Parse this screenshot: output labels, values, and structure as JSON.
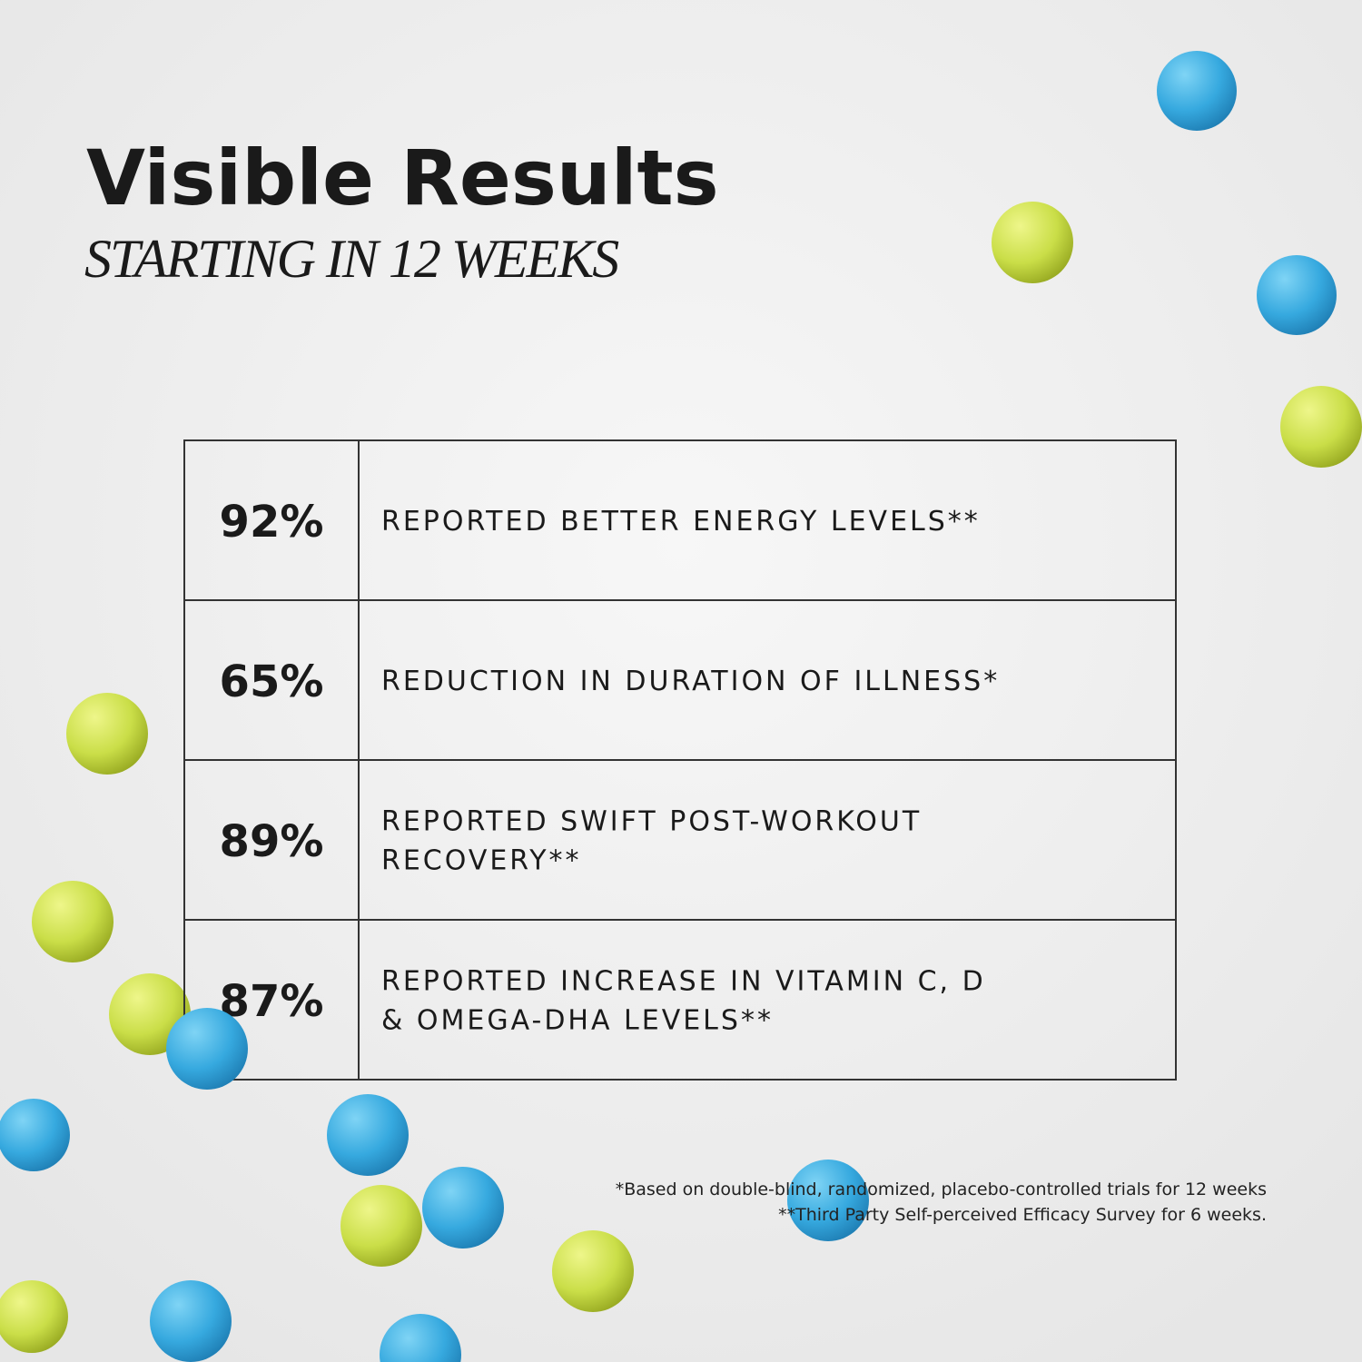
{
  "header": {
    "title": "Visible Results",
    "subtitle": "STARTING IN 12 WEEKS"
  },
  "table": {
    "rows": [
      {
        "stat": "92%",
        "label": [
          "REPORTED BETTER ENERGY LEVELS**"
        ]
      },
      {
        "stat": "65%",
        "label": [
          "REDUCTION IN DURATION OF ILLNESS*"
        ]
      },
      {
        "stat": "89%",
        "label": [
          "REPORTED SWIFT POST-WORKOUT",
          "RECOVERY**"
        ]
      },
      {
        "stat": "87%",
        "label": [
          "REPORTED INCREASE IN VITAMIN C, D",
          "& OMEGA-DHA LEVELS**"
        ]
      }
    ]
  },
  "footnotes": [
    "*Based on double-blind, randomized, placebo-controlled trials for 12 weeks",
    "**Third Party Self-perceived Efficacy Survey for 6 weeks."
  ]
}
